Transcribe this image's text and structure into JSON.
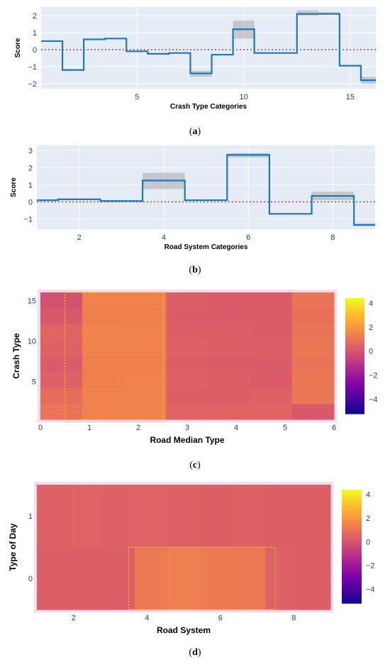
{
  "captions": {
    "a": "a",
    "b": "b",
    "c": "c",
    "d": "d"
  },
  "chart_data": [
    {
      "id": "a",
      "type": "line",
      "subtype": "step",
      "xlabel": "Crash Type Categories",
      "ylabel": "Score",
      "xlim": [
        0.5,
        16.2
      ],
      "ylim": [
        -2.3,
        2.5
      ],
      "xticks": [
        "5",
        "10",
        "15"
      ],
      "xtick_values": [
        5,
        10,
        15
      ],
      "yticks": [
        "−2",
        "−1",
        "0",
        "1",
        "2"
      ],
      "ytick_values": [
        -2,
        -1,
        0,
        1,
        2
      ],
      "reference_line": {
        "y": 0,
        "style": "dotted",
        "color": "#e8362f"
      },
      "colors": {
        "line": "#1f77b4",
        "band": "#a9a9a9",
        "plot_bg": "#e5ecf6"
      },
      "series": [
        {
          "x": [
            1,
            2,
            3,
            4,
            5,
            6,
            7,
            8,
            9,
            10,
            11,
            12,
            13,
            14,
            15,
            16
          ],
          "values": [
            0.5,
            -1.2,
            0.6,
            0.65,
            -0.1,
            -0.25,
            -0.2,
            -1.4,
            -0.3,
            1.2,
            -0.2,
            -0.2,
            2.1,
            2.1,
            -0.95,
            -1.8
          ],
          "lower": [
            0.5,
            -1.2,
            0.6,
            0.65,
            -0.1,
            -0.25,
            -0.2,
            -1.6,
            -0.3,
            0.65,
            -0.2,
            -0.2,
            2.0,
            2.05,
            -0.95,
            -2.0
          ],
          "upper": [
            0.5,
            -1.2,
            0.6,
            0.65,
            -0.1,
            -0.25,
            -0.2,
            -1.25,
            -0.3,
            1.7,
            -0.2,
            -0.2,
            2.3,
            2.2,
            -0.95,
            -1.6
          ]
        }
      ]
    },
    {
      "id": "b",
      "type": "line",
      "subtype": "step",
      "xlabel": "Road System Categories",
      "ylabel": "Score",
      "xlim": [
        1,
        9
      ],
      "ylim": [
        -1.6,
        3.3
      ],
      "xticks": [
        "2",
        "4",
        "6",
        "8"
      ],
      "xtick_values": [
        2,
        4,
        6,
        8
      ],
      "yticks": [
        "−1",
        "0",
        "1",
        "2",
        "3"
      ],
      "ytick_values": [
        -1,
        0,
        1,
        2,
        3
      ],
      "reference_line": {
        "y": 0,
        "style": "dotted",
        "color": "#e8362f"
      },
      "colors": {
        "line": "#1f77b4",
        "band": "#a9a9a9",
        "plot_bg": "#e5ecf6"
      },
      "series": [
        {
          "x": [
            1,
            2,
            3,
            4,
            5,
            6,
            7,
            8,
            9
          ],
          "values": [
            0.1,
            0.15,
            0.05,
            1.25,
            0.1,
            2.75,
            -0.7,
            0.35,
            -1.35
          ],
          "lower": [
            0.05,
            0.1,
            0.0,
            0.75,
            0.1,
            2.6,
            -0.7,
            0.1,
            -1.4
          ],
          "upper": [
            0.15,
            0.2,
            0.1,
            1.7,
            0.1,
            2.85,
            -0.7,
            0.6,
            -1.25
          ]
        }
      ]
    },
    {
      "id": "c",
      "type": "heatmap",
      "xlabel": "Road Median Type",
      "ylabel": "Crash Type",
      "xticks": [
        "0",
        "1",
        "2",
        "3",
        "4",
        "5",
        "6"
      ],
      "yticks": [
        "5",
        "10",
        "15"
      ],
      "colorbar": {
        "ticks": [
          "4",
          "2",
          "0",
          "−2",
          "−4"
        ],
        "tick_values": [
          4,
          2,
          0,
          -2,
          -4
        ],
        "range": [
          -5.2,
          4.4
        ]
      },
      "colors": {
        "highlight": "#f5d020",
        "colorscale": "plasma"
      },
      "x_categories": [
        0,
        1,
        2,
        3,
        4,
        5,
        6
      ],
      "y_categories": [
        1,
        3,
        5,
        7,
        9,
        11,
        13,
        15
      ],
      "z": [
        [
          1.1,
          1.5,
          1.5,
          0.6,
          0.55,
          0.6,
          0.2
        ],
        [
          0.9,
          1.5,
          1.5,
          0.45,
          0.4,
          0.5,
          1.2
        ],
        [
          0.5,
          1.45,
          1.5,
          0.5,
          0.45,
          0.35,
          1.2
        ],
        [
          0.3,
          1.45,
          1.45,
          0.4,
          0.35,
          0.3,
          1.1
        ],
        [
          0.5,
          1.5,
          1.5,
          0.5,
          0.45,
          0.4,
          1.2
        ],
        [
          0.6,
          1.55,
          1.5,
          0.45,
          0.4,
          0.35,
          1.1
        ],
        [
          0.2,
          1.45,
          1.45,
          0.35,
          0.3,
          0.35,
          1.0
        ],
        [
          0.0,
          1.5,
          1.5,
          0.4,
          0.35,
          0.35,
          1.1
        ]
      ],
      "highlight_region": {
        "x": [
          0.5,
          2.5
        ],
        "y": [
          0,
          16
        ]
      }
    },
    {
      "id": "d",
      "type": "heatmap",
      "xlabel": "Road System",
      "ylabel": "Type of Day",
      "xticks": [
        "2",
        "4",
        "6",
        "8"
      ],
      "yticks": [
        "0",
        "1"
      ],
      "colorbar": {
        "ticks": [
          "4",
          "2",
          "0",
          "−2",
          "−4"
        ],
        "tick_values": [
          4,
          2,
          0,
          -2,
          -4
        ],
        "range": [
          -5.2,
          4.4
        ]
      },
      "colors": {
        "highlight": "#f5d020",
        "colorscale": "plasma"
      },
      "x_categories": [
        1,
        2,
        3,
        4,
        5,
        6,
        7,
        8,
        9
      ],
      "y_categories": [
        0,
        1
      ],
      "z": [
        [
          0.4,
          0.45,
          0.4,
          1.3,
          1.4,
          1.3,
          1.25,
          0.5,
          0.4
        ],
        [
          0.5,
          0.55,
          0.5,
          0.55,
          0.5,
          0.45,
          0.5,
          0.45,
          0.45
        ]
      ],
      "highlight_region": {
        "x": [
          3.5,
          7.5
        ],
        "y": [
          -0.5,
          0.5
        ]
      }
    }
  ]
}
